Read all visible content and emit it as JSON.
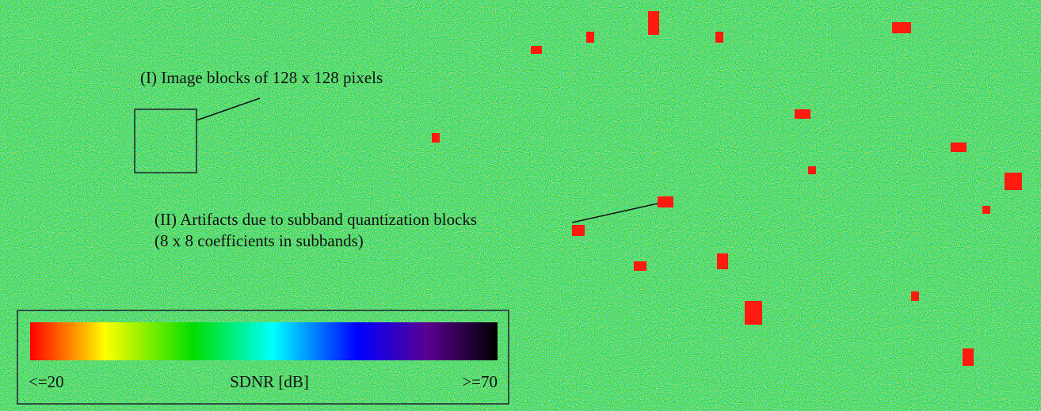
{
  "annotations": {
    "image_blocks": "(I) Image blocks of 128 x 128 pixels",
    "artifacts": "(II) Artifacts due to subband quantization blocks",
    "artifacts_detail": "(8 x 8 coefficients in subbands)"
  },
  "colorbar": {
    "min_label": "<=20",
    "title": "SDNR [dB]",
    "max_label": ">=70"
  }
}
